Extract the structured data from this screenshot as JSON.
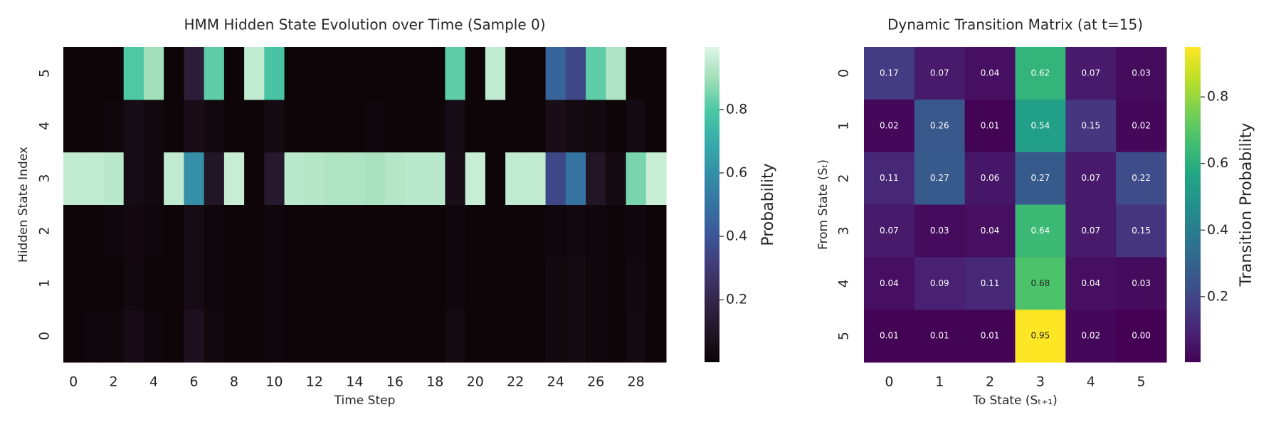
{
  "chart_data": [
    {
      "type": "heatmap",
      "title": "HMM Hidden State Evolution over Time (Sample 0)",
      "xlabel": "Time Step",
      "ylabel": "Hidden State Index",
      "x": [
        0,
        1,
        2,
        3,
        4,
        5,
        6,
        7,
        8,
        9,
        10,
        11,
        12,
        13,
        14,
        15,
        16,
        17,
        18,
        19,
        20,
        21,
        22,
        23,
        24,
        25,
        26,
        27,
        28,
        29
      ],
      "y": [
        0,
        1,
        2,
        3,
        4,
        5
      ],
      "y_inverted": false,
      "values": [
        [
          0.01,
          0.02,
          0.02,
          0.05,
          0.02,
          0.01,
          0.08,
          0.03,
          0.01,
          0.01,
          0.02,
          0.01,
          0.01,
          0.01,
          0.01,
          0.01,
          0.01,
          0.01,
          0.01,
          0.04,
          0.01,
          0.01,
          0.01,
          0.01,
          0.03,
          0.04,
          0.02,
          0.01,
          0.04,
          0.01
        ],
        [
          0.01,
          0.01,
          0.01,
          0.03,
          0.01,
          0.01,
          0.05,
          0.02,
          0.01,
          0.01,
          0.02,
          0.01,
          0.01,
          0.01,
          0.01,
          0.01,
          0.01,
          0.01,
          0.01,
          0.02,
          0.01,
          0.01,
          0.01,
          0.01,
          0.03,
          0.04,
          0.02,
          0.01,
          0.03,
          0.01
        ],
        [
          0.01,
          0.01,
          0.02,
          0.03,
          0.02,
          0.01,
          0.05,
          0.02,
          0.01,
          0.01,
          0.02,
          0.01,
          0.01,
          0.01,
          0.01,
          0.01,
          0.01,
          0.01,
          0.01,
          0.02,
          0.01,
          0.01,
          0.01,
          0.01,
          0.02,
          0.03,
          0.02,
          0.01,
          0.02,
          0.01
        ],
        [
          0.95,
          0.95,
          0.94,
          0.05,
          0.03,
          0.95,
          0.6,
          0.1,
          0.96,
          0.01,
          0.12,
          0.94,
          0.93,
          0.92,
          0.92,
          0.91,
          0.93,
          0.94,
          0.94,
          0.06,
          0.96,
          0.01,
          0.95,
          0.95,
          0.35,
          0.5,
          0.1,
          0.04,
          0.85,
          0.96
        ],
        [
          0.01,
          0.01,
          0.02,
          0.05,
          0.03,
          0.01,
          0.06,
          0.03,
          0.01,
          0.01,
          0.04,
          0.01,
          0.01,
          0.01,
          0.01,
          0.02,
          0.01,
          0.01,
          0.01,
          0.05,
          0.01,
          0.01,
          0.01,
          0.01,
          0.06,
          0.04,
          0.03,
          0.01,
          0.04,
          0.01
        ],
        [
          0.01,
          0.01,
          0.01,
          0.8,
          0.9,
          0.01,
          0.15,
          0.82,
          0.01,
          0.95,
          0.78,
          0.01,
          0.01,
          0.01,
          0.01,
          0.01,
          0.01,
          0.01,
          0.01,
          0.82,
          0.01,
          0.95,
          0.01,
          0.01,
          0.45,
          0.35,
          0.82,
          0.92,
          0.01,
          0.01
        ]
      ],
      "xticks": [
        0,
        2,
        4,
        6,
        8,
        10,
        12,
        14,
        16,
        18,
        20,
        22,
        24,
        26,
        28
      ],
      "yticks": [
        0,
        1,
        2,
        3,
        4,
        5
      ],
      "cmap": "mako",
      "clim": [
        0.003,
        0.997
      ],
      "cticks": [
        0.2,
        0.4,
        0.6,
        0.8
      ],
      "colorbar_label": "Probability",
      "annot": false
    },
    {
      "type": "heatmap",
      "title": "Dynamic Transition Matrix (at t=15)",
      "xlabel": "To State (Sₜ₊₁)",
      "ylabel": "From State (Sₜ)",
      "x": [
        0,
        1,
        2,
        3,
        4,
        5
      ],
      "y": [
        0,
        1,
        2,
        3,
        4,
        5
      ],
      "y_inverted": true,
      "values": [
        [
          0.17,
          0.07,
          0.04,
          0.62,
          0.07,
          0.03
        ],
        [
          0.02,
          0.26,
          0.01,
          0.54,
          0.15,
          0.02
        ],
        [
          0.11,
          0.27,
          0.06,
          0.27,
          0.07,
          0.22
        ],
        [
          0.07,
          0.03,
          0.04,
          0.64,
          0.07,
          0.15
        ],
        [
          0.04,
          0.09,
          0.11,
          0.68,
          0.04,
          0.03
        ],
        [
          0.01,
          0.01,
          0.01,
          0.95,
          0.02,
          0
        ]
      ],
      "value_labels": [
        [
          "0.17",
          "0.07",
          "0.04",
          "0.62",
          "0.07",
          "0.03"
        ],
        [
          "0.02",
          "0.26",
          "0.01",
          "0.54",
          "0.15",
          "0.02"
        ],
        [
          "0.11",
          "0.27",
          "0.06",
          "0.27",
          "0.07",
          "0.22"
        ],
        [
          "0.07",
          "0.03",
          "0.04",
          "0.64",
          "0.07",
          "0.15"
        ],
        [
          "0.04",
          "0.09",
          "0.11",
          "0.68",
          "0.04",
          "0.03"
        ],
        [
          "0.01",
          "0.01",
          "0.01",
          "0.95",
          "0.02",
          "0.00"
        ]
      ],
      "xticks": [
        0,
        1,
        2,
        3,
        4,
        5
      ],
      "yticks": [
        0,
        1,
        2,
        3,
        4,
        5
      ],
      "cmap": "viridis",
      "clim": [
        0.003,
        0.95
      ],
      "cticks": [
        0.2,
        0.4,
        0.6,
        0.8
      ],
      "colorbar_label": "Transition Probability",
      "annot": true
    }
  ]
}
